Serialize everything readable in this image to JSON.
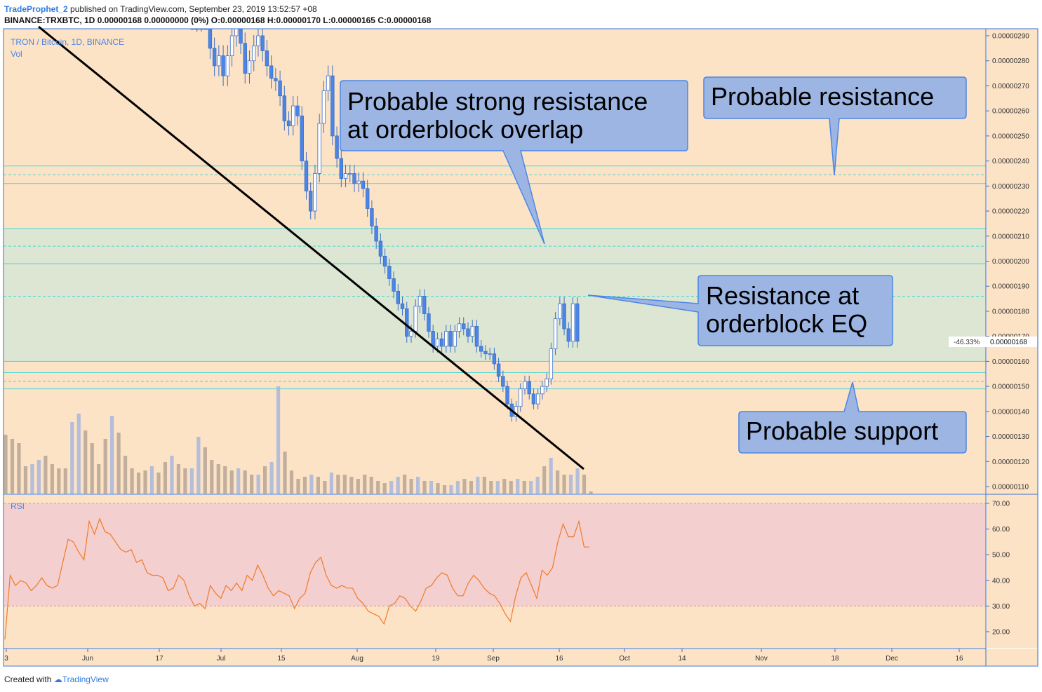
{
  "header": {
    "user": "TradeProphet_2",
    "published": " published on TradingView.com, September 23, 2019 13:52:57 +08",
    "ohlc": "BINANCE:TRXBTC, 1D  0.00000168 0.00000000 (0%) O:0.00000168 H:0.00000170 L:0.00000165 C:0.00000168"
  },
  "footer": {
    "created": "Created with",
    "brand": "TradingView"
  },
  "colors": {
    "panel_bg": "#fde3c6",
    "zone": "#d9e6d4",
    "rsi_band": "#f3cfd0",
    "bull": "#ffffff",
    "bear": "#4b86e6",
    "candle_edge": "#3b6fc9",
    "vol_up": "#a7b6dc",
    "vol_down": "#b6a595",
    "rsi_line": "#f07a2a",
    "level": "#44d6d6",
    "callout": "#9cb5e3",
    "trend": "#000000"
  },
  "chart_data": [
    {
      "type": "candlestick",
      "symbol_label": "TRON / Bitcoin, 1D, BINANCE",
      "volume_label": "Vol",
      "ylim": [
        1.05e-06,
        2.93e-06
      ],
      "y_ticks": [
        "0.00000290",
        "0.00000280",
        "0.00000270",
        "0.00000260",
        "0.00000250",
        "0.00000240",
        "0.00000230",
        "0.00000220",
        "0.00000210",
        "0.00000200",
        "0.00000190",
        "0.00000180",
        "0.00000170",
        "0.00000160",
        "0.00000150",
        "0.00000140",
        "0.00000130",
        "0.00000120",
        "0.00000110"
      ],
      "last_price": {
        "change": "-46.33%",
        "value": "0.00000168"
      },
      "x_ticks": [
        "3",
        "Jun",
        "17",
        "Jul",
        "15",
        "Aug",
        "19",
        "Sep",
        "16",
        "Oct",
        "14",
        "Nov",
        "18",
        "Dec",
        "16"
      ],
      "closes": [
        3e-06,
        2.96e-06,
        2.98e-06,
        2.97e-06,
        2.85e-06,
        2.78e-06,
        2.82e-06,
        2.74e-06,
        2.82e-06,
        2.9e-06,
        2.95e-06,
        2.87e-06,
        2.75e-06,
        2.8e-06,
        2.86e-06,
        2.9e-06,
        2.84e-06,
        2.78e-06,
        2.73e-06,
        2.72e-06,
        2.66e-06,
        2.56e-06,
        2.54e-06,
        2.62e-06,
        2.58e-06,
        2.4e-06,
        2.28e-06,
        2.2e-06,
        2.35e-06,
        2.55e-06,
        2.68e-06,
        2.74e-06,
        2.5e-06,
        2.41e-06,
        2.33e-06,
        2.35e-06,
        2.35e-06,
        2.31e-06,
        2.32e-06,
        2.29e-06,
        2.21e-06,
        2.14e-06,
        2.08e-06,
        2.02e-06,
        1.98e-06,
        1.93e-06,
        1.88e-06,
        1.83e-06,
        1.81e-06,
        1.7e-06,
        1.72e-06,
        1.82e-06,
        1.86e-06,
        1.79e-06,
        1.72e-06,
        1.66e-06,
        1.69e-06,
        1.66e-06,
        1.72e-06,
        1.66e-06,
        1.72e-06,
        1.75e-06,
        1.73e-06,
        1.7e-06,
        1.74e-06,
        1.66e-06,
        1.64e-06,
        1.63e-06,
        1.63e-06,
        1.59e-06,
        1.54e-06,
        1.5e-06,
        1.43e-06,
        1.38e-06,
        1.42e-06,
        1.49e-06,
        1.52e-06,
        1.47e-06,
        1.43e-06,
        1.47e-06,
        1.5e-06,
        1.53e-06,
        1.65e-06,
        1.77e-06,
        1.83e-06,
        1.73e-06,
        1.68e-06,
        1.83e-06,
        1.68e-06
      ],
      "volumes": [
        2.8,
        2.6,
        2.4,
        1.3,
        1.4,
        1.6,
        1.8,
        1.4,
        1.2,
        1.2,
        3.4,
        3.8,
        3.0,
        2.4,
        1.4,
        2.6,
        3.7,
        2.9,
        1.8,
        1.2,
        1.0,
        1.1,
        1.3,
        1.0,
        1.5,
        1.8,
        1.4,
        1.2,
        1.2,
        2.7,
        2.2,
        1.6,
        1.4,
        1.3,
        1.1,
        1.2,
        1.1,
        0.9,
        0.9,
        1.3,
        1.5,
        5.1,
        2.0,
        1.1,
        0.7,
        0.8,
        0.9,
        0.8,
        0.6,
        1.0,
        0.9,
        0.9,
        0.8,
        0.7,
        0.9,
        0.8,
        0.6,
        0.5,
        0.6,
        0.8,
        0.9,
        0.7,
        0.8,
        0.6,
        0.6,
        0.5,
        0.4,
        0.4,
        0.6,
        0.7,
        0.6,
        0.8,
        0.8,
        0.6,
        0.6,
        0.7,
        0.6,
        0.7,
        0.6,
        0.6,
        0.8,
        1.3,
        1.7,
        1.1,
        0.9,
        0.9,
        1.2,
        0.9,
        0.1
      ],
      "levels": [
        {
          "price": 2.38e-06,
          "style": "solid"
        },
        {
          "price": 2.345e-06,
          "style": "dashed"
        },
        {
          "price": 2.31e-06,
          "style": "solid"
        },
        {
          "price": 2.13e-06,
          "style": "solid"
        },
        {
          "price": 2.06e-06,
          "style": "dashed"
        },
        {
          "price": 1.99e-06,
          "style": "solid"
        },
        {
          "price": 1.86e-06,
          "style": "dashed"
        },
        {
          "price": 1.6e-06,
          "style": "solid"
        },
        {
          "price": 1.555e-06,
          "style": "solid"
        },
        {
          "price": 1.52e-06,
          "style": "dashed"
        },
        {
          "price": 1.49e-06,
          "style": "solid"
        }
      ]
    },
    {
      "type": "line",
      "name": "RSI",
      "ylim": [
        12,
        75
      ],
      "y_ticks": [
        "70.00",
        "60.00",
        "50.00",
        "40.00",
        "30.00",
        "20.00"
      ],
      "band": [
        30,
        70
      ],
      "values": [
        17,
        42,
        38,
        40,
        39,
        36,
        38,
        41,
        38,
        37,
        38,
        47,
        56,
        55,
        51,
        48,
        63,
        58,
        64,
        59,
        58,
        55,
        52,
        51,
        52,
        47,
        48,
        43,
        42,
        42,
        41,
        36,
        37,
        42,
        40,
        34,
        30,
        31,
        29,
        38,
        35,
        33,
        38,
        36,
        39,
        36,
        42,
        40,
        46,
        42,
        37,
        34,
        36,
        35,
        34,
        29,
        33,
        35,
        43,
        47,
        49,
        42,
        38,
        37,
        38,
        37,
        37,
        33,
        31,
        28,
        27,
        26,
        23,
        30,
        31,
        34,
        33,
        30,
        28,
        32,
        37,
        38,
        41,
        43,
        42,
        37,
        34,
        34,
        39,
        42,
        40,
        37,
        35,
        34,
        31,
        27,
        24,
        34,
        41,
        43,
        38,
        33,
        44,
        42,
        45,
        55,
        62,
        57,
        57,
        63,
        53,
        53
      ]
    }
  ],
  "annotations": {
    "strong_resistance": [
      "Probable strong resistance",
      "at orderblock overlap"
    ],
    "resistance": [
      "Probable resistance"
    ],
    "eq_resistance": [
      "Resistance at",
      "orderblock EQ"
    ],
    "support": [
      "Probable support"
    ]
  }
}
